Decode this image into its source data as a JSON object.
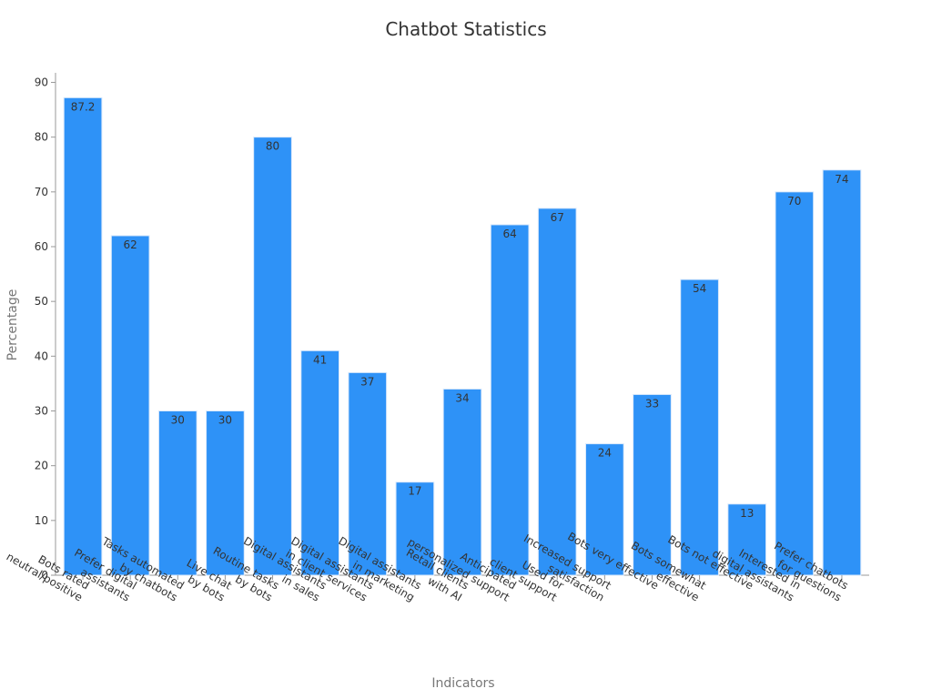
{
  "colors": {
    "bar": "#2e92f7",
    "bar_edge": "#d9e8fb",
    "axis": "#999999",
    "text": "#333333",
    "axis_title": "#777777"
  },
  "chart_data": {
    "type": "bar",
    "title": "Chatbot Statistics",
    "xlabel": "Indicators",
    "ylabel": "Percentage",
    "ylim": [
      0,
      90
    ],
    "yticks": [
      0,
      10,
      20,
      30,
      40,
      50,
      60,
      70,
      80,
      90
    ],
    "grid": false,
    "categories": [
      [
        "Bots rated",
        "neutral/positive"
      ],
      [
        "Prefer digital",
        "assistants"
      ],
      [
        "Tasks automated",
        "by chatbots"
      ],
      [
        "Live chat",
        "by bots"
      ],
      [
        "Routine tasks",
        "by bots"
      ],
      [
        "Digital assistants",
        "in sales"
      ],
      [
        "Digital assistants",
        "in client services"
      ],
      [
        "Digital assistants",
        "in marketing"
      ],
      [
        "Retail clients",
        "with AI"
      ],
      [
        "Anticipated",
        "personalized support"
      ],
      [
        "Used for",
        "client support"
      ],
      [
        "Increased support",
        "satisfaction"
      ],
      [
        "Bots very effective"
      ],
      [
        "Bots somewhat",
        "effective"
      ],
      [
        "Bots not effective"
      ],
      [
        "Interested in",
        "digital assistants"
      ],
      [
        "Prefer chatbots",
        "for questions"
      ]
    ],
    "values": [
      87.2,
      62,
      30,
      30,
      80,
      41,
      37,
      17,
      34,
      64,
      67,
      24,
      33,
      54,
      13,
      70,
      74
    ],
    "value_labels": [
      "87.2",
      "62",
      "30",
      "30",
      "80",
      "41",
      "37",
      "17",
      "34",
      "64",
      "67",
      "24",
      "33",
      "54",
      "13",
      "70",
      "74"
    ]
  }
}
